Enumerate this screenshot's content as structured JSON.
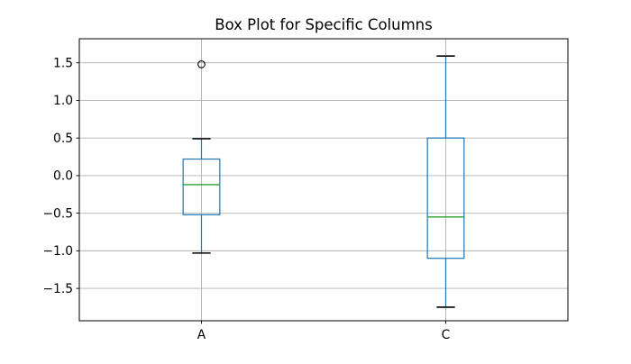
{
  "chart_data": {
    "type": "boxplot",
    "title": "Box Plot for Specific Columns",
    "categories": [
      "A",
      "C"
    ],
    "positions": [
      1,
      2
    ],
    "xlim": [
      0.5,
      2.5
    ],
    "ylim": [
      -1.93,
      1.82
    ],
    "yticks": [
      1.5,
      1.0,
      0.5,
      0.0,
      -0.5,
      -1.0,
      -1.5
    ],
    "ytick_labels": [
      "1.5",
      "1.0",
      "0.5",
      "0.0",
      "−0.5",
      "−1.0",
      "−1.5"
    ],
    "grid": true,
    "legend": "none",
    "box_width_units": 0.15,
    "series": [
      {
        "name": "A",
        "position": 1,
        "whisker_low": -1.03,
        "q1": -0.52,
        "median": -0.12,
        "q3": 0.22,
        "whisker_high": 0.49,
        "outliers": [
          1.48
        ]
      },
      {
        "name": "C",
        "position": 2,
        "whisker_low": -1.75,
        "q1": -1.1,
        "median": -0.55,
        "q3": 0.5,
        "whisker_high": 1.59,
        "outliers": []
      }
    ],
    "colors": {
      "box": "#1f77b4",
      "whisker": "#1f77b4",
      "median": "#2ca02c",
      "cap": "#000000",
      "outlier_edge": "#000000",
      "grid": "#b0b0b0",
      "spine": "#000000",
      "text": "#000000",
      "background": "#ffffff"
    }
  }
}
